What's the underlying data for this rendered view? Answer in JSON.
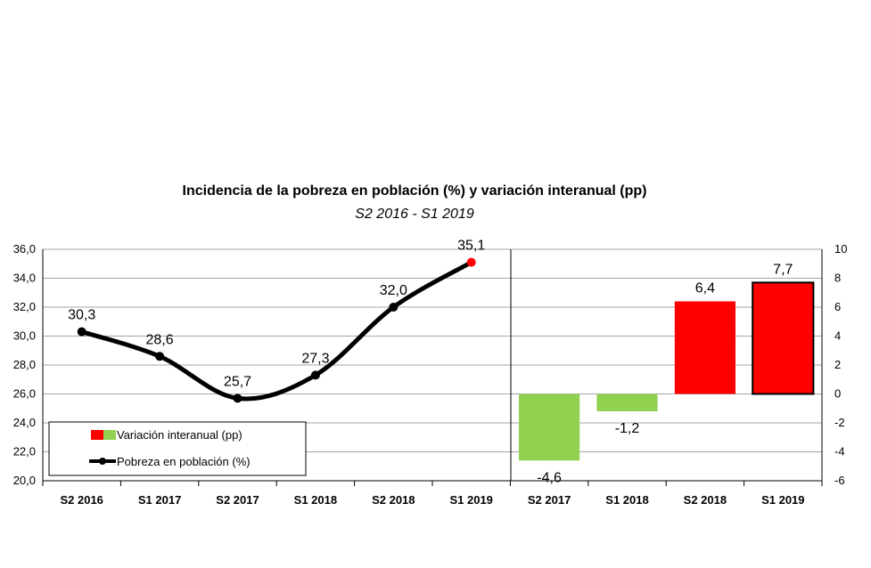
{
  "chart_data": {
    "title": "Incidencia de la pobreza en población (%) y variación interanual (pp)",
    "subtitle": "S2 2016 - S1 2019",
    "colors": {
      "line": "#000000",
      "marker_highlight": "#ff0000",
      "bar_positive": "#ff0000",
      "bar_negative": "#92d050",
      "grid": "#a6a6a6"
    },
    "grid": true,
    "legend_position": "bottom-left",
    "panels": [
      {
        "type": "line",
        "smooth": true,
        "categories": [
          "S2 2016",
          "S1 2017",
          "S2 2017",
          "S1 2018",
          "S2 2018",
          "S1 2019"
        ],
        "series": [
          {
            "name": "Pobreza en población (%)",
            "values": [
              30.3,
              28.6,
              25.7,
              27.3,
              32.0,
              35.1
            ],
            "labels": [
              "30,3",
              "28,6",
              "25,7",
              "27,3",
              "32,0",
              "35,1"
            ]
          }
        ],
        "axis": "left",
        "ylim": [
          20,
          36
        ],
        "yticks": [
          "20,0",
          "22,0",
          "24,0",
          "26,0",
          "28,0",
          "30,0",
          "32,0",
          "34,0",
          "36,0"
        ]
      },
      {
        "type": "bar",
        "categories": [
          "S2 2017",
          "S1 2018",
          "S2 2018",
          "S1 2019"
        ],
        "series": [
          {
            "name": "Variación interanual (pp)",
            "values": [
              -4.6,
              -1.2,
              6.4,
              7.7
            ],
            "labels": [
              "-4,6",
              "-1,2",
              "6,4",
              "7,7"
            ]
          }
        ],
        "axis": "right",
        "ylim": [
          -6,
          10
        ],
        "yticks": [
          "-6",
          "-4",
          "-2",
          "0",
          "2",
          "4",
          "6",
          "8",
          "10"
        ]
      }
    ],
    "legend": [
      {
        "label": "Variación interanual (pp)",
        "symbol": "bar"
      },
      {
        "label": "Pobreza en población (%)",
        "symbol": "line"
      }
    ]
  }
}
